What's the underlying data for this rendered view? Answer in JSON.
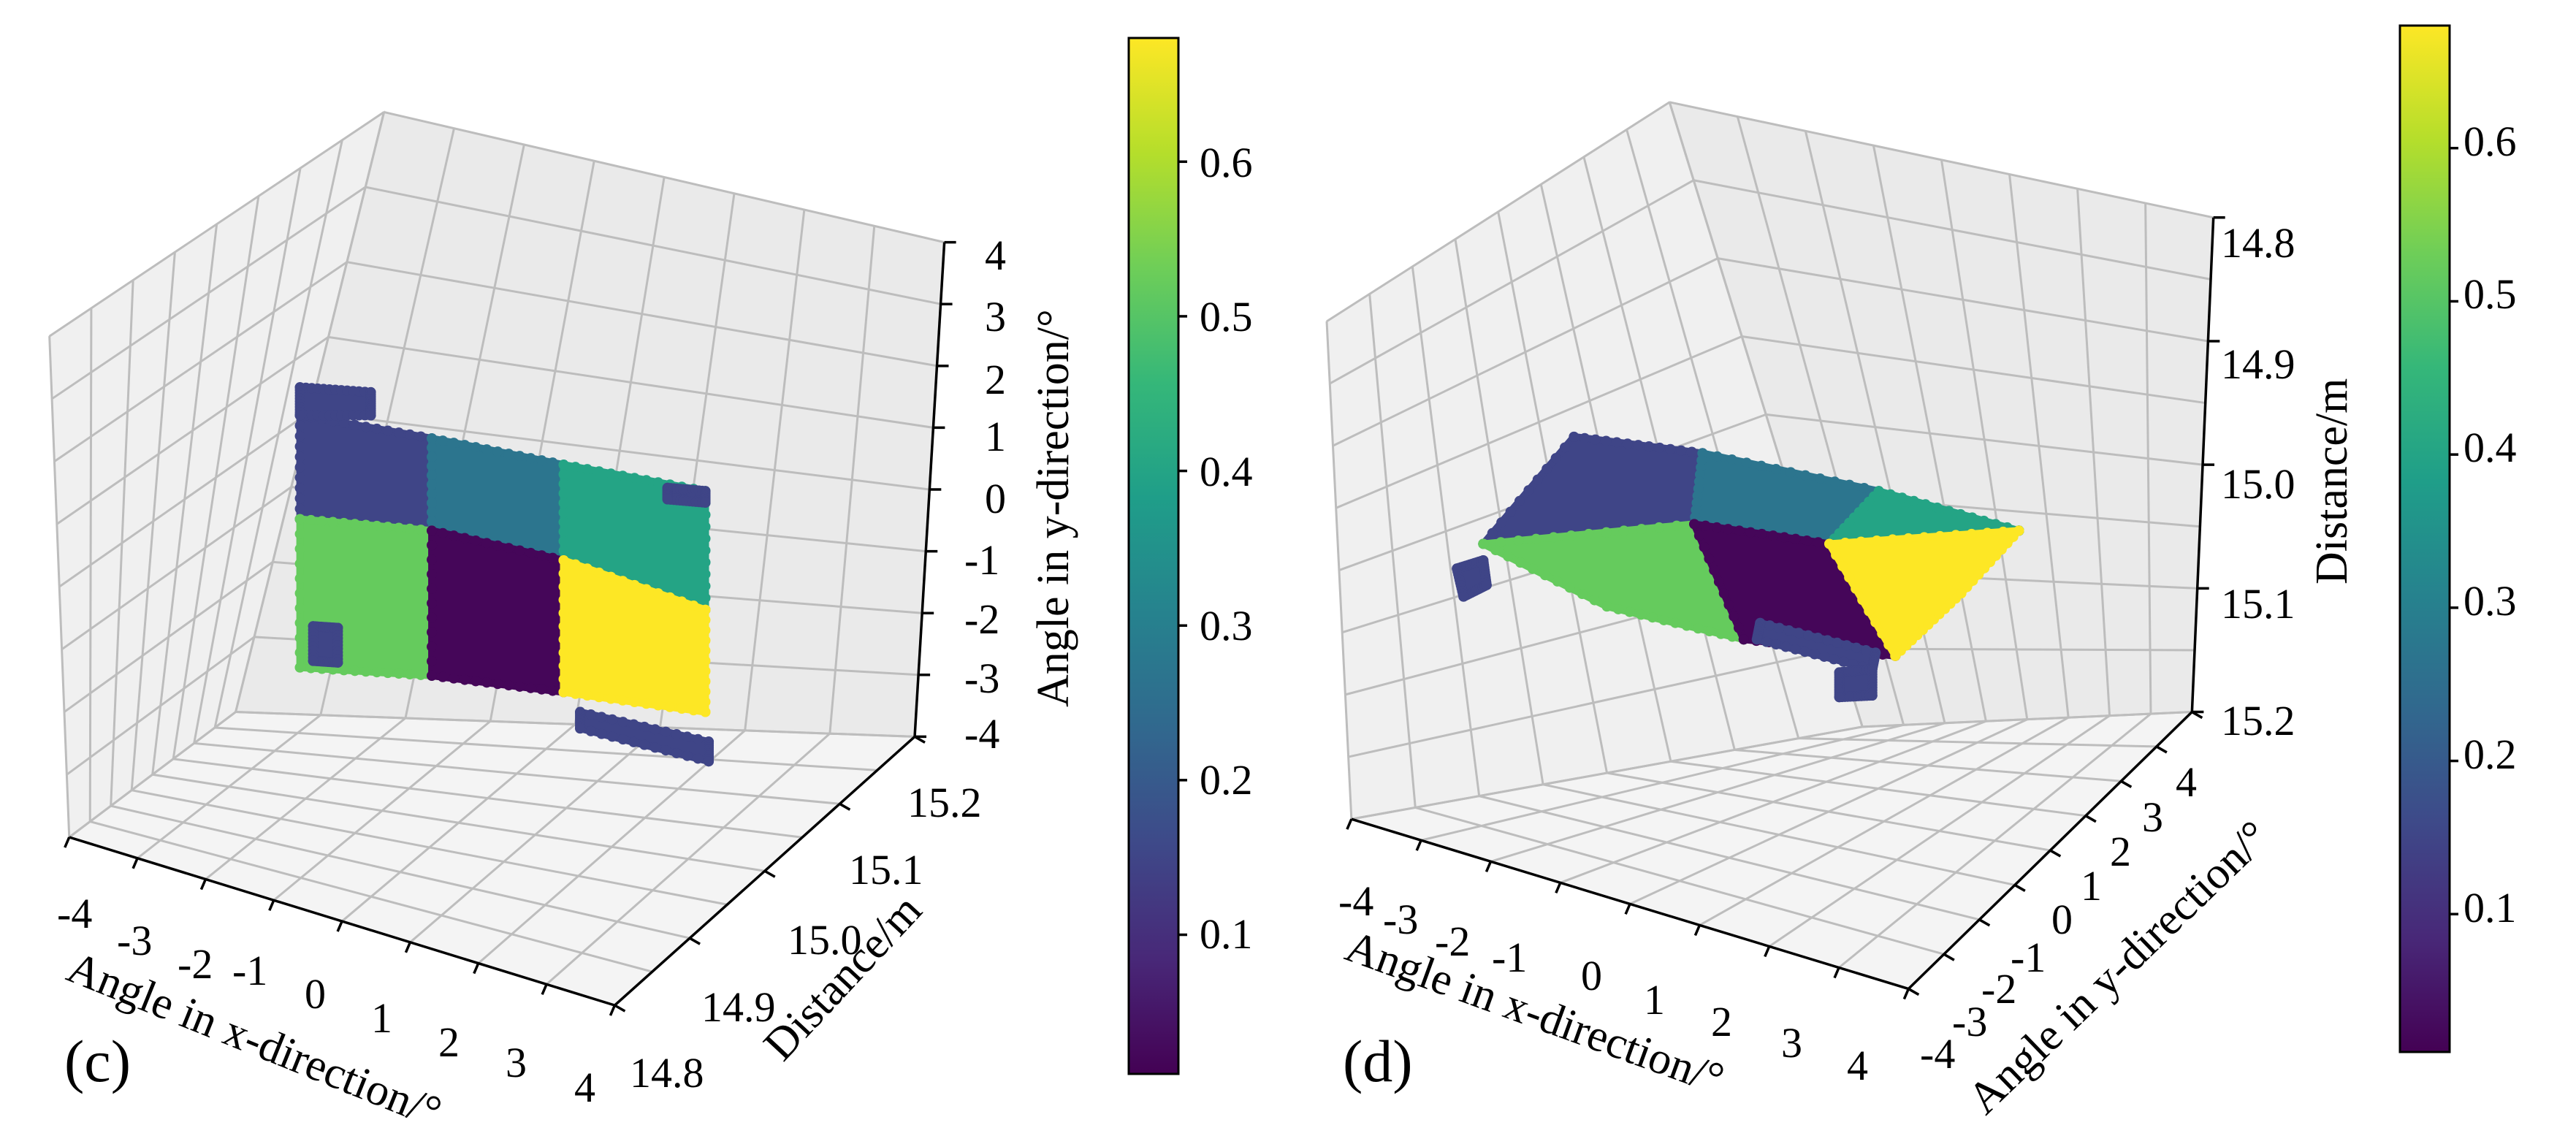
{
  "colors": {
    "viridis": [
      "#440154",
      "#482878",
      "#3e4989",
      "#31688e",
      "#26828e",
      "#1f9e89",
      "#35b779",
      "#6ece58",
      "#b5de2b",
      "#fde725"
    ],
    "pane_back": "#eaeaea",
    "pane_side": "#f0f0f0",
    "pane_floor": "#f4f4f4"
  },
  "chart_data": [
    {
      "panel_label": "(c)",
      "type": "scatter3d",
      "view": "front (x-y plane facing viewer)",
      "x_axis": {
        "label": "Angle in x-direction/°",
        "ticks": [
          "-4",
          "-3",
          "-2",
          "-1",
          "0",
          "1",
          "2",
          "3",
          "4"
        ],
        "range": [
          -4,
          4
        ]
      },
      "y_axis": {
        "label": "Angle in y-direction/°",
        "ticks": [
          "4",
          "3",
          "2",
          "1",
          "0",
          "-1",
          "-2",
          "-3",
          "-4"
        ],
        "range": [
          -4,
          4
        ]
      },
      "z_axis": {
        "label": "Distance/m",
        "ticks": [
          "15.2",
          "15.1",
          "15.0",
          "14.9",
          "14.8"
        ],
        "range": [
          14.8,
          15.2
        ]
      },
      "colorbar": {
        "ticks": [
          "0.6",
          "0.5",
          "0.4",
          "0.3",
          "0.2",
          "0.1"
        ],
        "tick_values": [
          0.6,
          0.5,
          0.4,
          0.3,
          0.2,
          0.1
        ],
        "range": [
          0.01,
          0.68
        ]
      },
      "patches": [
        {
          "col": 0,
          "row": 0,
          "value": 0.15
        },
        {
          "col": 1,
          "row": 0,
          "value": 0.27
        },
        {
          "col": 2,
          "row": 0,
          "value": 0.4
        },
        {
          "col": 0,
          "row": 1,
          "value": 0.52
        },
        {
          "col": 1,
          "row": 1,
          "value": 0.02
        },
        {
          "col": 2,
          "row": 1,
          "value": 0.68
        }
      ],
      "edge_strips_value": 0.15
    },
    {
      "panel_label": "(d)",
      "type": "scatter3d",
      "view": "top-down (distance on vertical axis)",
      "x_axis": {
        "label": "Angle in x-direction/°",
        "ticks": [
          "-4",
          "-3",
          "-2",
          "-1",
          "0",
          "1",
          "2",
          "3",
          "4"
        ],
        "range": [
          -4,
          4
        ]
      },
      "y_axis": {
        "label": "Angle in y-direction/°",
        "ticks": [
          "-4",
          "-3",
          "-2",
          "-1",
          "0",
          "1",
          "2",
          "3",
          "4"
        ],
        "range": [
          -4,
          4
        ]
      },
      "z_axis": {
        "label": "Distance/m",
        "ticks": [
          "14.8",
          "14.9",
          "15.0",
          "15.1",
          "15.2"
        ],
        "range": [
          14.8,
          15.2
        ]
      },
      "colorbar": {
        "ticks": [
          "0.6",
          "0.5",
          "0.4",
          "0.3",
          "0.2",
          "0.1"
        ],
        "tick_values": [
          0.6,
          0.5,
          0.4,
          0.3,
          0.2,
          0.1
        ],
        "range": [
          0.01,
          0.68
        ]
      },
      "patches": [
        {
          "col": 0,
          "row": 0,
          "value": 0.15
        },
        {
          "col": 1,
          "row": 0,
          "value": 0.27
        },
        {
          "col": 2,
          "row": 0,
          "value": 0.4
        },
        {
          "col": 0,
          "row": 1,
          "value": 0.52
        },
        {
          "col": 1,
          "row": 1,
          "value": 0.02
        },
        {
          "col": 2,
          "row": 1,
          "value": 0.68
        }
      ],
      "edge_strips_value": 0.15
    }
  ]
}
